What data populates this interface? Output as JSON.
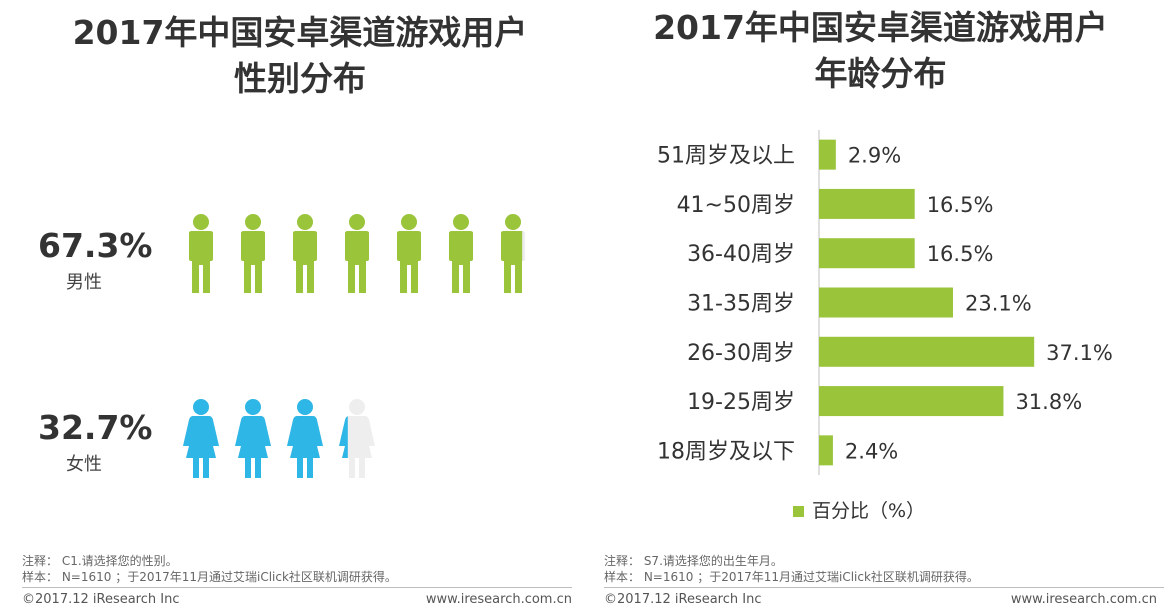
{
  "left": {
    "title_line1": "2017年中国安卓渠道游戏用户",
    "title_line2": "性别分布",
    "male": {
      "pct": "67.3%",
      "label": "男性",
      "value": 67.3,
      "color": "#9ac43a"
    },
    "female": {
      "pct": "32.7%",
      "label": "女性",
      "value": 32.7,
      "color": "#2eb6e6"
    },
    "note_line1": "注释： C1.请选择您的性别。",
    "note_line2": "样本： N=1610 ；于2017年11月通过艾瑞iClick社区联机调研获得。",
    "footer_left": "©2017.12 iResearch Inc",
    "footer_right": "www.iresearch.com.cn"
  },
  "right": {
    "title_line1": "2017年中国安卓渠道游戏用户",
    "title_line2": "年龄分布",
    "note_line1": "注释： S7.请选择您的出生年月。",
    "note_line2": "样本： N=1610 ；于2017年11月通过艾瑞iClick社区联机调研获得。",
    "footer_left": "©2017.12 iResearch Inc",
    "footer_right": "www.iresearch.com.cn"
  },
  "chart_data": [
    {
      "type": "pictogram",
      "title": "2017年中国安卓渠道游戏用户性别分布",
      "categories": [
        "男性",
        "女性"
      ],
      "values": [
        67.3,
        32.7
      ],
      "unit": "%",
      "colors": [
        "#9ac43a",
        "#2eb6e6"
      ]
    },
    {
      "type": "bar",
      "orientation": "horizontal",
      "title": "2017年中国安卓渠道游戏用户年龄分布",
      "categories": [
        "51周岁及以上",
        "41~50周岁",
        "36-40周岁",
        "31-35周岁",
        "26-30周岁",
        "19-25周岁",
        "18周岁及以下"
      ],
      "values": [
        2.9,
        16.5,
        16.5,
        23.1,
        37.1,
        31.8,
        2.4
      ],
      "value_labels": [
        "2.9%",
        "16.5%",
        "16.5%",
        "23.1%",
        "37.1%",
        "31.8%",
        "2.4%"
      ],
      "legend": "百分比（%）",
      "color": "#9ac43a"
    }
  ]
}
